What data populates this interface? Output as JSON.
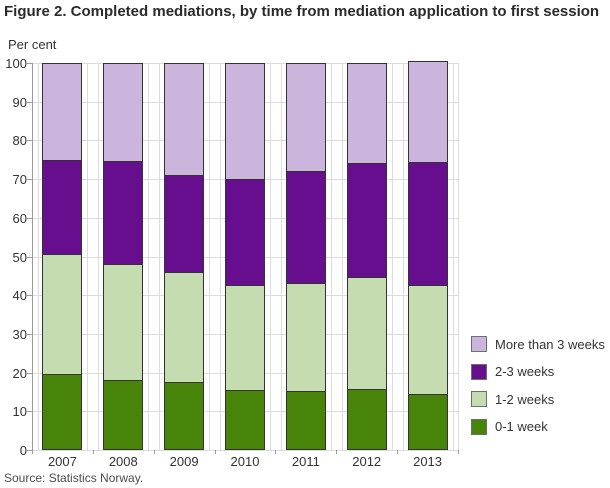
{
  "title": "Figure 2. Completed mediations, by time from mediation application to first session",
  "source": "Source: Statistics Norway.",
  "chart_data": {
    "type": "bar",
    "stacked": true,
    "title": "Figure 2. Completed mediations, by time from mediation application to first session",
    "ylabel": "Per cent",
    "xlabel": "",
    "ylim": [
      0,
      100
    ],
    "ytick_step": 10,
    "ytick_labels": [
      "0",
      "10",
      "20",
      "30",
      "40",
      "50",
      "60",
      "70",
      "80",
      "90",
      "100"
    ],
    "grid": true,
    "legend_position": "right",
    "categories": [
      "2007",
      "2008",
      "2009",
      "2010",
      "2011",
      "2012",
      "2013"
    ],
    "series": [
      {
        "name": "0-1 week",
        "color": "#478409",
        "values": [
          19.5,
          17.8,
          17.3,
          15.1,
          15.0,
          15.5,
          14.2
        ]
      },
      {
        "name": "1-2 weeks",
        "color": "#c5dcb1",
        "values": [
          31.0,
          30.0,
          28.4,
          27.4,
          28.0,
          29.0,
          28.2
        ]
      },
      {
        "name": "2-3 weeks",
        "color": "#670e8e",
        "values": [
          24.5,
          26.7,
          25.3,
          27.3,
          29.0,
          29.5,
          32.0
        ]
      },
      {
        "name": "More than 3 weeks",
        "color": "#ccb5dc",
        "values": [
          25.0,
          25.5,
          29.0,
          30.2,
          28.0,
          26.0,
          26.1
        ]
      }
    ],
    "legend_order_top_to_bottom": [
      "More than 3 weeks",
      "2-3 weeks",
      "1-2 weeks",
      "0-1 week"
    ],
    "style": {
      "grid_color": "#dcdcdc",
      "axis_color": "#9a9a9a",
      "bar_border_color": "#333333",
      "text_color": "#333333"
    }
  }
}
